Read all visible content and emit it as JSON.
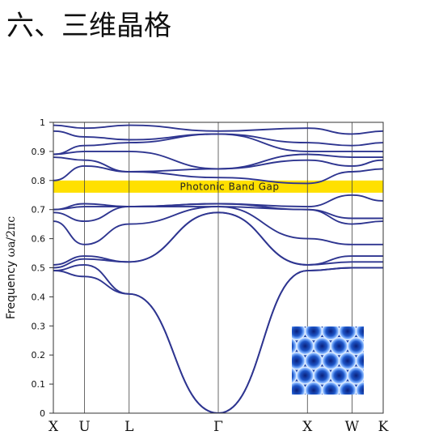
{
  "slide": {
    "title": "六、三维晶格"
  },
  "chart_data": {
    "type": "line",
    "title": "",
    "ylabel_main": "Frequency",
    "ylabel_unit": "ωa/2πc",
    "ylim": [
      0,
      1
    ],
    "yticks": [
      "0",
      "0.1",
      "0.2",
      "0.3",
      "0.4",
      "0.5",
      "0.6",
      "0.7",
      "0.8",
      "0.9",
      "1"
    ],
    "xticks": [
      {
        "label": "X",
        "k": 0
      },
      {
        "label": "U",
        "k": 0.35
      },
      {
        "label": "L",
        "k": 0.85
      },
      {
        "label": "Γ",
        "k": 1.85
      },
      {
        "label": "X",
        "k": 2.85
      },
      {
        "label": "W",
        "k": 3.35
      },
      {
        "label": "K",
        "k": 3.7
      }
    ],
    "band_gap": {
      "label": "Photonic Band Gap",
      "lower": 0.758,
      "upper": 0.8,
      "color": "#ffe000"
    },
    "line_color": "#2e3590",
    "series": [
      {
        "points": [
          [
            0,
            0.49
          ],
          [
            0.35,
            0.47
          ],
          [
            0.85,
            0.41
          ],
          [
            1.85,
            0
          ],
          [
            2.85,
            0.49
          ],
          [
            3.35,
            0.5
          ],
          [
            3.7,
            0.5
          ]
        ]
      },
      {
        "points": [
          [
            0,
            0.49
          ],
          [
            0.35,
            0.51
          ],
          [
            0.85,
            0.41
          ],
          [
            1.85,
            0
          ],
          [
            2.85,
            0.49
          ],
          [
            3.35,
            0.5
          ],
          [
            3.7,
            0.5
          ]
        ]
      },
      {
        "points": [
          [
            0,
            0.5
          ],
          [
            0.35,
            0.53
          ],
          [
            0.85,
            0.52
          ],
          [
            1.85,
            0.69
          ],
          [
            2.85,
            0.51
          ],
          [
            3.35,
            0.52
          ],
          [
            3.7,
            0.52
          ]
        ]
      },
      {
        "points": [
          [
            0,
            0.51
          ],
          [
            0.35,
            0.54
          ],
          [
            0.85,
            0.52
          ],
          [
            1.85,
            0.69
          ],
          [
            2.85,
            0.51
          ],
          [
            3.35,
            0.54
          ],
          [
            3.7,
            0.54
          ]
        ]
      },
      {
        "points": [
          [
            0,
            0.66
          ],
          [
            0.35,
            0.58
          ],
          [
            0.85,
            0.65
          ],
          [
            1.85,
            0.71
          ],
          [
            2.85,
            0.6
          ],
          [
            3.35,
            0.58
          ],
          [
            3.7,
            0.58
          ]
        ]
      },
      {
        "points": [
          [
            0,
            0.69
          ],
          [
            0.35,
            0.66
          ],
          [
            0.85,
            0.71
          ],
          [
            1.85,
            0.71
          ],
          [
            2.85,
            0.7
          ],
          [
            3.35,
            0.65
          ],
          [
            3.7,
            0.66
          ]
        ]
      },
      {
        "points": [
          [
            0,
            0.7
          ],
          [
            0.35,
            0.71
          ],
          [
            0.85,
            0.71
          ],
          [
            1.85,
            0.72
          ],
          [
            2.85,
            0.7
          ],
          [
            3.35,
            0.67
          ],
          [
            3.7,
            0.67
          ]
        ]
      },
      {
        "points": [
          [
            0,
            0.7
          ],
          [
            0.35,
            0.72
          ],
          [
            0.85,
            0.71
          ],
          [
            1.85,
            0.72
          ],
          [
            2.85,
            0.71
          ],
          [
            3.35,
            0.75
          ],
          [
            3.7,
            0.73
          ]
        ]
      },
      {
        "points": [
          [
            0,
            0.8
          ],
          [
            0.35,
            0.85
          ],
          [
            0.85,
            0.83
          ],
          [
            1.85,
            0.81
          ],
          [
            2.85,
            0.79
          ],
          [
            3.35,
            0.83
          ],
          [
            3.7,
            0.84
          ]
        ]
      },
      {
        "points": [
          [
            0,
            0.88
          ],
          [
            0.35,
            0.87
          ],
          [
            0.85,
            0.83
          ],
          [
            1.85,
            0.84
          ],
          [
            2.85,
            0.87
          ],
          [
            3.35,
            0.85
          ],
          [
            3.7,
            0.87
          ]
        ]
      },
      {
        "points": [
          [
            0,
            0.89
          ],
          [
            0.35,
            0.9
          ],
          [
            0.85,
            0.9
          ],
          [
            1.85,
            0.84
          ],
          [
            2.85,
            0.89
          ],
          [
            3.35,
            0.88
          ],
          [
            3.7,
            0.88
          ]
        ]
      },
      {
        "points": [
          [
            0,
            0.89
          ],
          [
            0.35,
            0.92
          ],
          [
            0.85,
            0.93
          ],
          [
            1.85,
            0.96
          ],
          [
            2.85,
            0.9
          ],
          [
            3.35,
            0.9
          ],
          [
            3.7,
            0.9
          ]
        ]
      },
      {
        "points": [
          [
            0,
            0.97
          ],
          [
            0.35,
            0.95
          ],
          [
            0.85,
            0.94
          ],
          [
            1.85,
            0.96
          ],
          [
            2.85,
            0.93
          ],
          [
            3.35,
            0.92
          ],
          [
            3.7,
            0.93
          ]
        ]
      },
      {
        "points": [
          [
            0,
            0.99
          ],
          [
            0.35,
            0.98
          ],
          [
            0.85,
            0.99
          ],
          [
            1.85,
            0.97
          ],
          [
            2.85,
            0.98
          ],
          [
            3.35,
            0.96
          ],
          [
            3.7,
            0.97
          ]
        ]
      }
    ],
    "inset_image": {
      "name": "inverse-opal-crystal-image"
    }
  }
}
